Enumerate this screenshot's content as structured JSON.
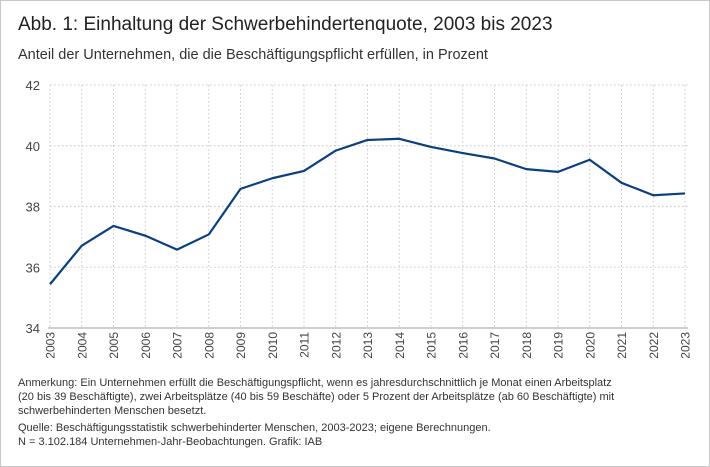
{
  "title": "Abb. 1: Einhaltung der Schwerbehindertenquote, 2003 bis 2023",
  "subtitle": "Anteil der Unternehmen, die die Beschäftigungspflicht erfüllen, in Prozent",
  "chart_data": {
    "type": "line",
    "title": "Abb. 1: Einhaltung der Schwerbehindertenquote, 2003 bis 2023",
    "subtitle": "Anteil der Unternehmen, die die Beschäftigungspflicht erfüllen, in Prozent",
    "xlabel": "",
    "ylabel": "",
    "x": [
      "2003",
      "2004",
      "2005",
      "2006",
      "2007",
      "2008",
      "2009",
      "2010",
      "2011",
      "2012",
      "2013",
      "2014",
      "2015",
      "2016",
      "2017",
      "2018",
      "2019",
      "2020",
      "2021",
      "2022",
      "2023"
    ],
    "series": [
      {
        "values": [
          35.44,
          36.71,
          37.36,
          37.04,
          36.58,
          37.08,
          38.58,
          38.93,
          39.17,
          39.84,
          40.19,
          40.23,
          39.96,
          39.76,
          39.58,
          39.23,
          39.14,
          39.54,
          38.78,
          38.37,
          38.43
        ],
        "color": "#0b3f7e"
      }
    ],
    "ylim": [
      34,
      42
    ],
    "yticks": [
      "34",
      "36",
      "38",
      "40",
      "42"
    ],
    "grid": true
  },
  "notes": {
    "anmerkung": "Anmerkung: Ein Unternehmen erfüllt die Beschäftigungspflicht, wenn es jahresdurchschnittlich je Monat einen Arbeitsplatz\n(20 bis 39 Beschäftigte), zwei Arbeitsplätze (40 bis 59 Beschäfte) oder 5 Prozent der Arbeitsplätze (ab 60 Beschäftigte) mit\nschwerbehinderten Menschen besetzt.",
    "quelle": "Quelle: Beschäftigungsstatistik schwerbehinderter Menschen, 2003-2023; eigene Berechnungen.",
    "n": "N = 3.102.184 Unternehmen-Jahr-Beobachtungen. Grafik: IAB"
  }
}
